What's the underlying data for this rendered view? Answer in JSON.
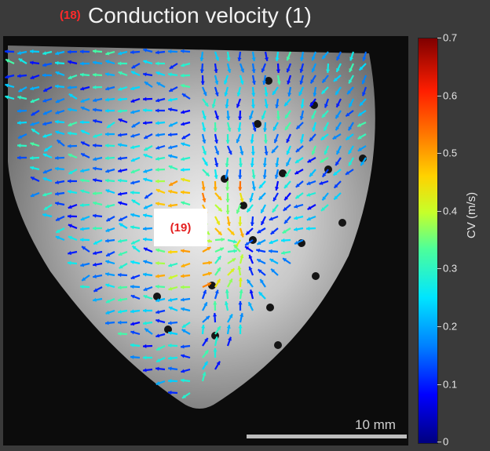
{
  "header": {
    "badge": "(18)",
    "title": "Conduction velocity (1)"
  },
  "overlay": {
    "label": "(19)"
  },
  "scalebar": {
    "label": "10 mm"
  },
  "colorbar": {
    "label": "CV (m/s)",
    "ticks": [
      "0.7",
      "0.6",
      "0.5",
      "0.4",
      "0.3",
      "0.2",
      "0.1",
      "0"
    ],
    "colormap": "jet"
  },
  "colors": {
    "badge": "#ff2a2a",
    "title_text": "#f2f2f2",
    "background": "#3a3a3a",
    "overlay_text": "#e41f1f"
  }
}
